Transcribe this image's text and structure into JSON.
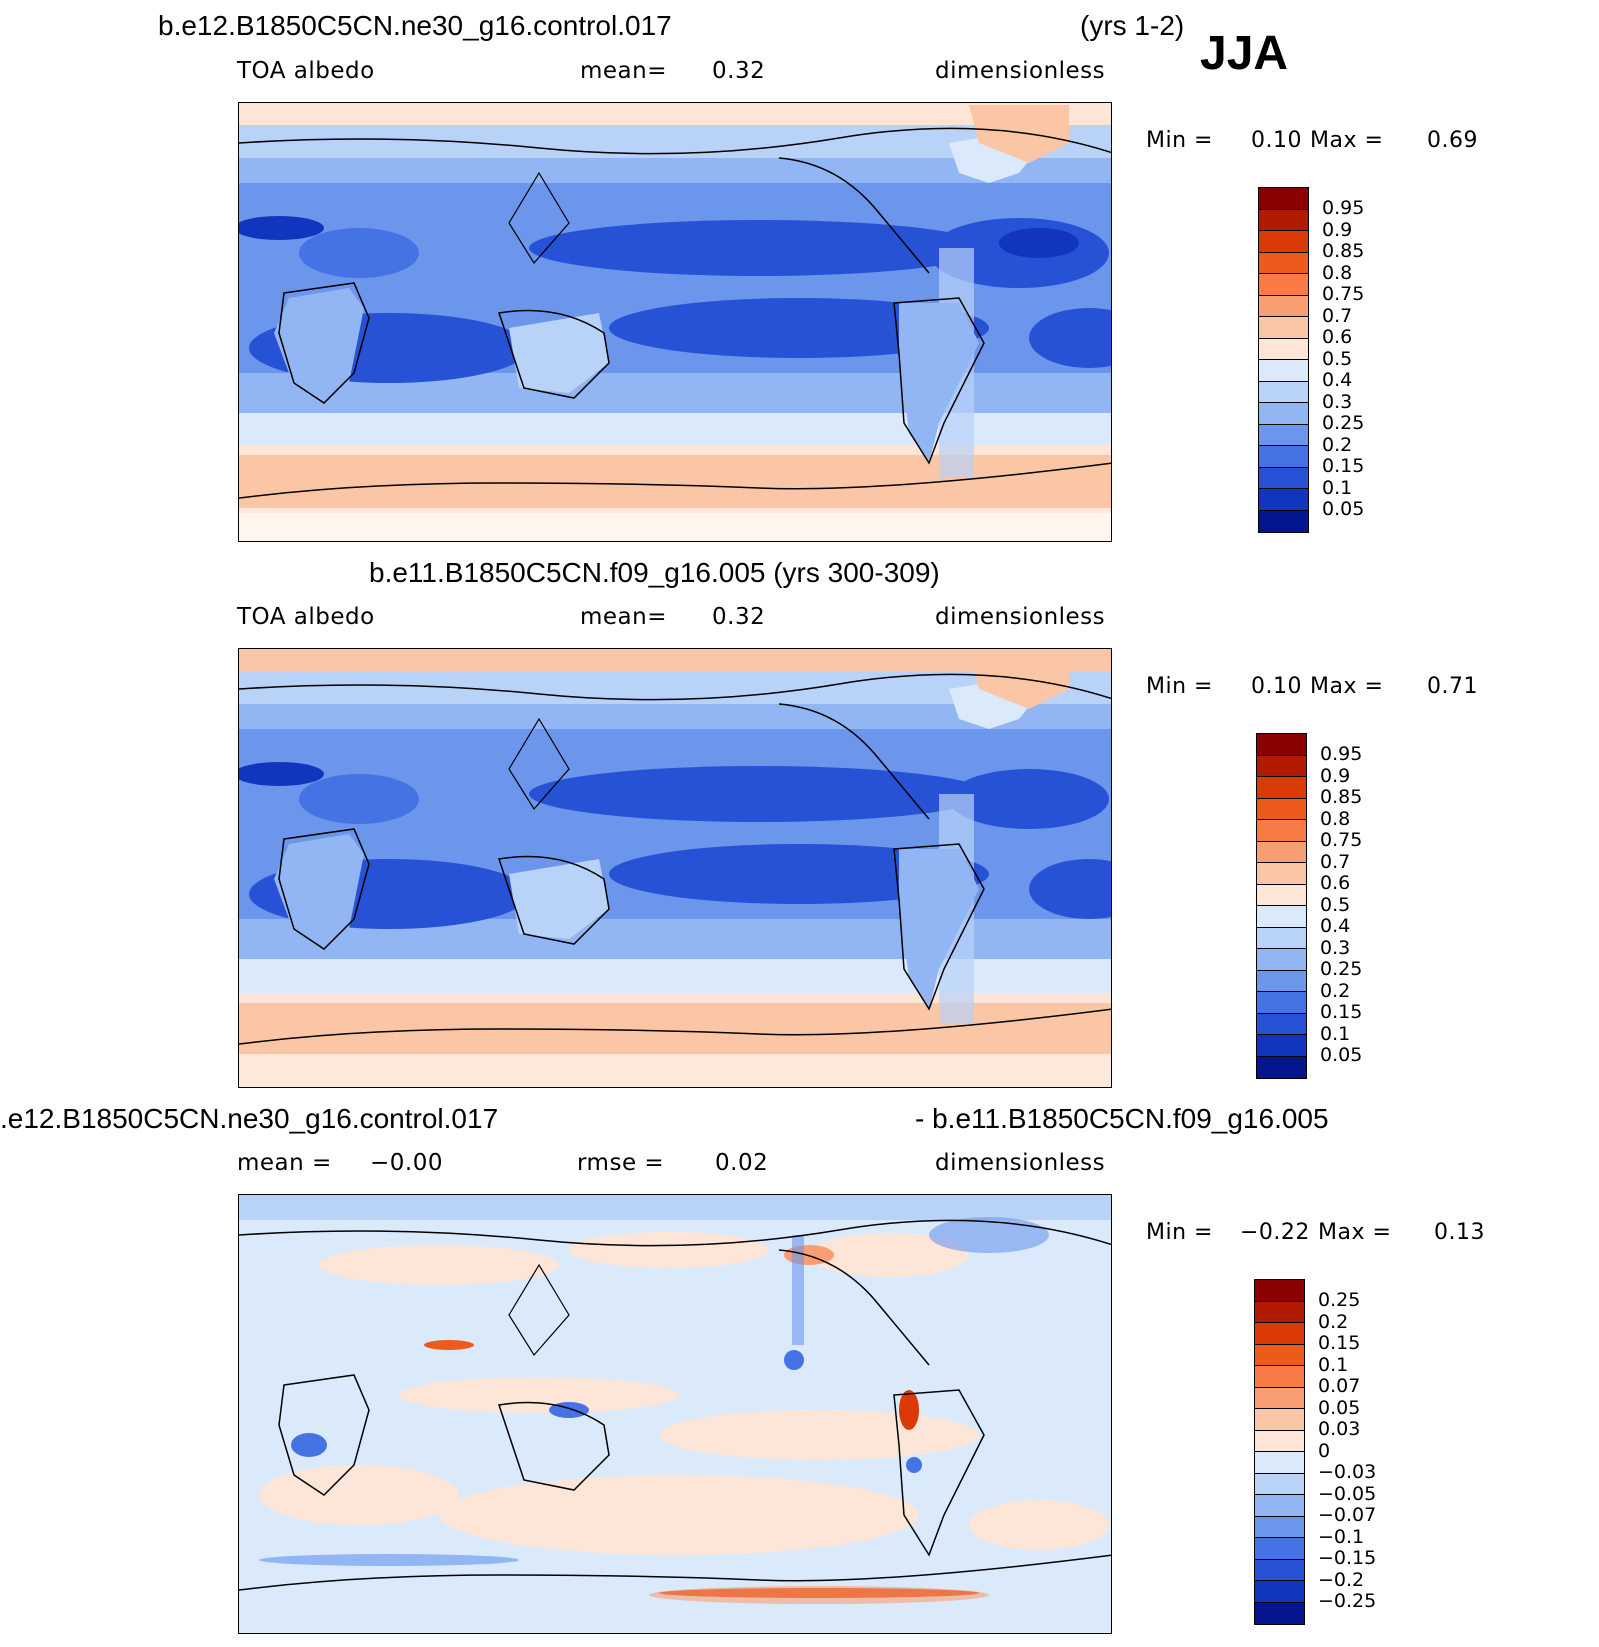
{
  "header": {
    "top_left_title": "b.e12.B1850C5CN.ne30_g16.control.017",
    "top_right_years": "(yrs 1-2)",
    "season": "JJA"
  },
  "panels": [
    {
      "title": "",
      "variable": "TOA albedo",
      "stat_label": "mean=",
      "stat_value": "0.32",
      "units": "dimensionless",
      "min_label": "Min =",
      "min_value": "0.10",
      "max_label": "Max =",
      "max_value": "0.69"
    },
    {
      "title": "b.e11.B1850C5CN.f09_g16.005 (yrs 300-309)",
      "variable": "TOA albedo",
      "stat_label": "mean=",
      "stat_value": "0.32",
      "units": "dimensionless",
      "min_label": "Min =",
      "min_value": "0.10",
      "max_label": "Max =",
      "max_value": "0.71"
    },
    {
      "title_left": ".e12.B1850C5CN.ne30_g16.control.017",
      "title_right": "- b.e11.B1850C5CN.f09_g16.005",
      "mean_label": "mean =",
      "mean_value": "−0.00",
      "rmse_label": "rmse =",
      "rmse_value": "0.02",
      "units": "dimensionless",
      "min_label": "Min =",
      "min_value": "−0.22",
      "max_label": "Max =",
      "max_value": "0.13"
    }
  ],
  "colorbars": {
    "abs_labels": [
      "0.95",
      "0.9",
      "0.85",
      "0.8",
      "0.75",
      "0.7",
      "0.6",
      "0.5",
      "0.4",
      "0.3",
      "0.25",
      "0.2",
      "0.15",
      "0.1",
      "0.05"
    ],
    "abs_colors": [
      "#8b0000",
      "#b31b00",
      "#d93a06",
      "#ee5a1c",
      "#f87a45",
      "#f99e73",
      "#fbc6a6",
      "#fde6d7",
      "#dbeafb",
      "#b8d2f8",
      "#92b6f3",
      "#6b96ec",
      "#4673e4",
      "#2752d6",
      "#1235bf",
      "#03158f"
    ],
    "diff_labels": [
      "0.25",
      "0.2",
      "0.15",
      "0.1",
      "0.07",
      "0.05",
      "0.03",
      "0",
      "−0.03",
      "−0.05",
      "−0.07",
      "−0.1",
      "−0.15",
      "−0.2",
      "−0.25"
    ],
    "diff_colors": [
      "#8b0000",
      "#b31b00",
      "#d93a06",
      "#ee5a1c",
      "#f87a45",
      "#f99e73",
      "#fbc6a6",
      "#fde6d7",
      "#dbeafb",
      "#b8d2f8",
      "#92b6f3",
      "#6b96ec",
      "#4673e4",
      "#2752d6",
      "#1235bf",
      "#03158f"
    ]
  },
  "chart_data": [
    {
      "type": "heatmap",
      "title": "TOA albedo",
      "units": "dimensionless",
      "mean": 0.32,
      "min": 0.1,
      "max": 0.69,
      "contour_levels": [
        0.05,
        0.1,
        0.15,
        0.2,
        0.25,
        0.3,
        0.4,
        0.5,
        0.6,
        0.7,
        0.75,
        0.8,
        0.85,
        0.9,
        0.95
      ]
    },
    {
      "type": "heatmap",
      "title": "TOA albedo",
      "units": "dimensionless",
      "mean": 0.32,
      "min": 0.1,
      "max": 0.71,
      "contour_levels": [
        0.05,
        0.1,
        0.15,
        0.2,
        0.25,
        0.3,
        0.4,
        0.5,
        0.6,
        0.7,
        0.75,
        0.8,
        0.85,
        0.9,
        0.95
      ]
    },
    {
      "type": "heatmap",
      "units": "dimensionless",
      "mean": -0.0,
      "rmse": 0.02,
      "min": -0.22,
      "max": 0.13,
      "contour_levels": [
        -0.25,
        -0.2,
        -0.15,
        -0.1,
        -0.07,
        -0.05,
        -0.03,
        0,
        0.03,
        0.05,
        0.07,
        0.1,
        0.15,
        0.2,
        0.25
      ]
    }
  ]
}
